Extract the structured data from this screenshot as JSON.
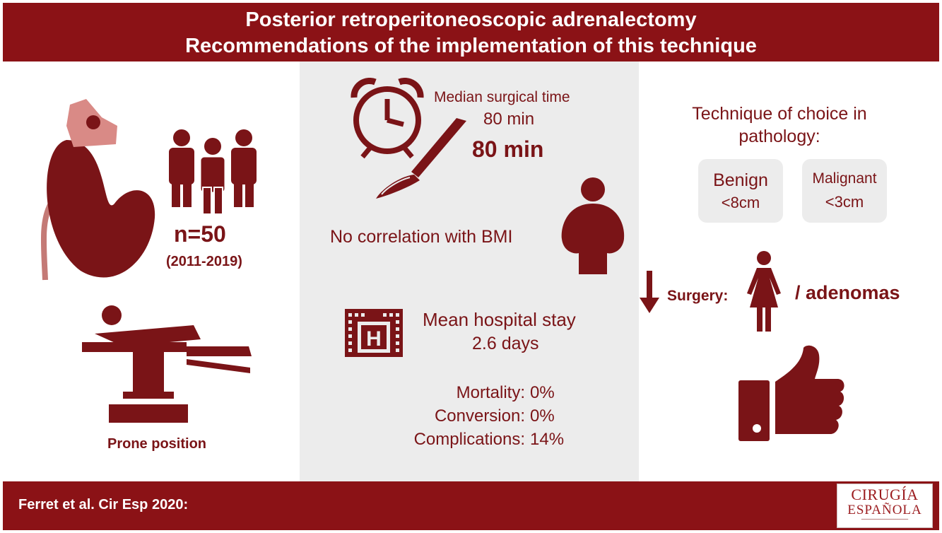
{
  "header": {
    "title_line1": "Posterior retroperitoneoscopic adrenalectomy",
    "title_line2": "Recommendations of the implementation of this technique"
  },
  "left": {
    "patients_count": "n=50",
    "years": "(2011-2019)",
    "position_label": "Prone position",
    "icons": [
      "kidney-adrenal-icon",
      "people-group-icon",
      "patient-on-table-icon"
    ]
  },
  "middle": {
    "surgical_time_label": "Median surgical time",
    "surgical_time_value_1": "80 min",
    "surgical_time_value_2": "80 min",
    "bmi_text": "No correlation with BMI",
    "hospital_stay_label": "Mean hospital stay",
    "hospital_stay_value": "2.6 days",
    "stats": [
      {
        "label": "Mortality:",
        "value": "0%"
      },
      {
        "label": "Conversion:",
        "value": "0%"
      },
      {
        "label": "Complications:",
        "value": "14%"
      }
    ],
    "icons": [
      "alarm-clock-icon",
      "scalpel-icon",
      "obese-person-icon",
      "hospital-icon"
    ]
  },
  "right": {
    "choice_title": "Technique of choice in pathology:",
    "benign": {
      "name": "Benign",
      "size": "<8cm"
    },
    "malignant": {
      "name": "Malignant",
      "size": "<3cm"
    },
    "surgery_label": "Surgery:",
    "adenomas_text": "/ adenomas",
    "icons": [
      "down-arrow-icon",
      "woman-icon",
      "thumbs-up-icon"
    ]
  },
  "footer": {
    "citation": "Ferret et al. Cir Esp 2020:",
    "journal_line1": "CIRUGÍA",
    "journal_line2": "ESPAÑOLA"
  },
  "colors": {
    "brand": "#8b1216",
    "text": "#7a1417",
    "panel": "#ececec",
    "adrenal": "#d98a86"
  }
}
